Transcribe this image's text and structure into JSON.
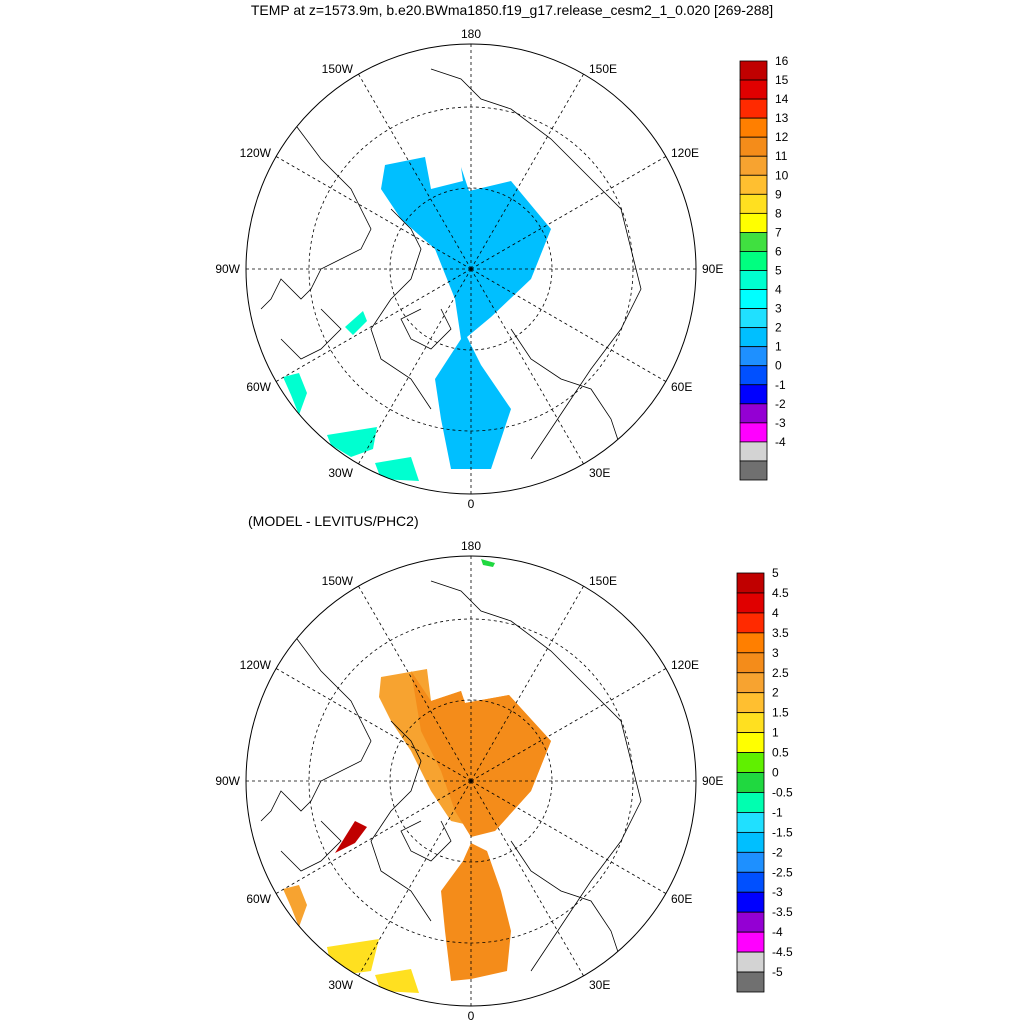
{
  "title": "TEMP at z=1573.9m, b.e20.BWma1850.f19_g17.release_cesm2_1_0.020 [269-288]",
  "panels": [
    {
      "subtitle": "",
      "lon_labels": {
        "top": "180",
        "bottom": "0",
        "left": "90W",
        "right": "90E",
        "ul1": "150W",
        "ul2": "120W",
        "ur1": "150E",
        "ur2": "120E",
        "ll1": "60W",
        "ll2": "30W",
        "lr1": "60E",
        "lr2": "30E"
      },
      "colorbar": {
        "labels": [
          "16",
          "15",
          "14",
          "13",
          "12",
          "11",
          "10",
          "9",
          "8",
          "7",
          "6",
          "5",
          "4",
          "3",
          "2",
          "1",
          "0",
          "-1",
          "-2",
          "-3",
          "-4"
        ],
        "colors": [
          "#c00000",
          "#e00000",
          "#ff2a00",
          "#ff7f00",
          "#f48c1a",
          "#f7a330",
          "#ffbf30",
          "#ffe020",
          "#ffff00",
          "#40e040",
          "#00ff80",
          "#00ffd0",
          "#00ffff",
          "#20e0ff",
          "#00bfff",
          "#1e90ff",
          "#0050ff",
          "#0000ff",
          "#9400d3",
          "#ff00ff",
          "#d3d3d3",
          "#707070"
        ]
      },
      "fills": [
        {
          "name": "central-arctic",
          "color": "#00bfff"
        },
        {
          "name": "baffin",
          "color": "#00ffd0"
        },
        {
          "name": "labrador",
          "color": "#00ffd0"
        },
        {
          "name": "irminger",
          "color": "#00ffd0"
        },
        {
          "name": "iceland",
          "color": "#00ffd0"
        }
      ]
    },
    {
      "subtitle": "(MODEL - LEVITUS/PHC2)",
      "lon_labels": {
        "top": "180",
        "bottom": "0",
        "left": "90W",
        "right": "90E",
        "ul1": "150W",
        "ul2": "120W",
        "ur1": "150E",
        "ur2": "120E",
        "ll1": "60W",
        "ll2": "30W",
        "lr1": "60E",
        "lr2": "30E"
      },
      "colorbar": {
        "labels": [
          "5",
          "4.5",
          "4",
          "3.5",
          "3",
          "2.5",
          "2",
          "1.5",
          "1",
          "0.5",
          "0",
          "-0.5",
          "-1",
          "-1.5",
          "-2",
          "-2.5",
          "-3",
          "-3.5",
          "-4",
          "-4.5",
          "-5"
        ],
        "colors": [
          "#c00000",
          "#e00000",
          "#ff2a00",
          "#ff7f00",
          "#f48c1a",
          "#f7a330",
          "#ffbf30",
          "#ffe020",
          "#ffff00",
          "#60f000",
          "#20d840",
          "#00ffb0",
          "#20e0ff",
          "#00bfff",
          "#1e90ff",
          "#0050ff",
          "#0000ff",
          "#9400d3",
          "#ff00ff",
          "#d3d3d3",
          "#707070"
        ]
      },
      "fills": [
        {
          "name": "central-arctic-a",
          "color": "#f7a330"
        },
        {
          "name": "central-arctic-b",
          "color": "#f48c1a"
        },
        {
          "name": "norwegian-sea",
          "color": "#f48c1a"
        },
        {
          "name": "baffin",
          "color": "#c00000"
        },
        {
          "name": "labrador",
          "color": "#f7a330"
        },
        {
          "name": "irminger",
          "color": "#ffe020"
        },
        {
          "name": "iceland",
          "color": "#ffe020"
        },
        {
          "name": "bering",
          "color": "#20d840"
        }
      ]
    }
  ]
}
